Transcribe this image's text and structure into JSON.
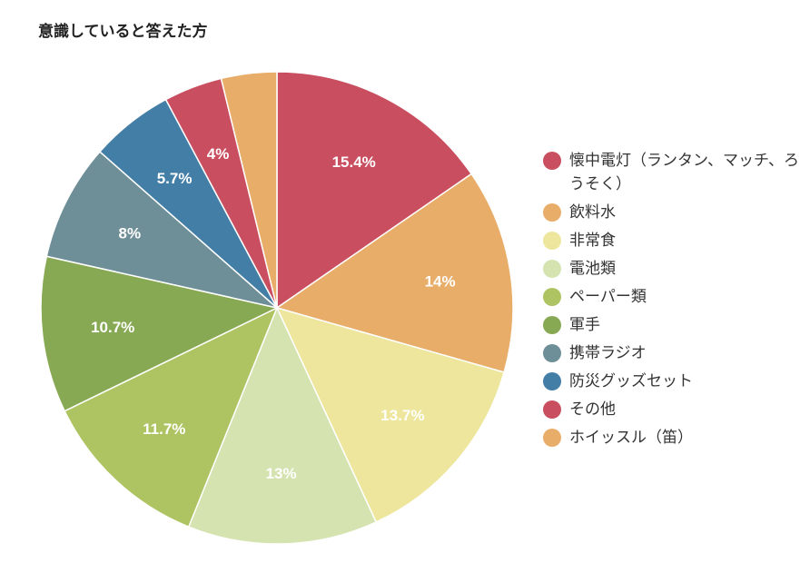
{
  "chart_data": {
    "type": "pie",
    "title": "意識していると答えた方",
    "categories": [
      "懐中電灯（ランタン、マッチ、ろうそく）",
      "飲料水",
      "非常食",
      "電池類",
      "ペーパー類",
      "軍手",
      "携帯ラジオ",
      "防災グッズセット",
      "その他",
      "ホイッスル（笛）"
    ],
    "values": [
      15.4,
      14,
      13.7,
      13,
      11.7,
      10.7,
      8,
      5.7,
      4,
      3.8
    ],
    "data_labels": [
      "15.4%",
      "14%",
      "13.7%",
      "13%",
      "11.7%",
      "10.7%",
      "8%",
      "5.7%",
      "4%",
      ""
    ],
    "colors": [
      "#c94e60",
      "#e8ad69",
      "#ede69c",
      "#d4e3b0",
      "#aec462",
      "#88a953",
      "#6e8f97",
      "#427ea6",
      "#c94e60",
      "#e8ad69"
    ],
    "legend_position": "right"
  }
}
